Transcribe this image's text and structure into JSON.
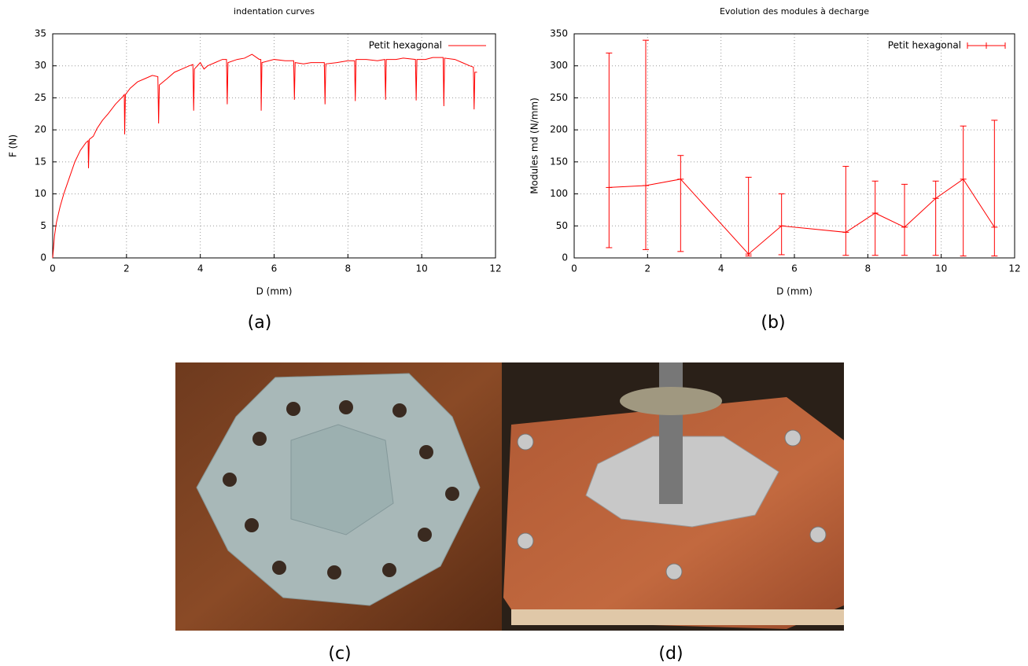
{
  "chart_data": [
    {
      "type": "line",
      "title": "indentation curves",
      "caption": "(a)",
      "xlabel": "D (mm)",
      "ylabel": "F (N)",
      "xlim": [
        0,
        12
      ],
      "ylim": [
        0,
        35
      ],
      "xticks": [
        0,
        2,
        4,
        6,
        8,
        10,
        12
      ],
      "yticks": [
        0,
        5,
        10,
        15,
        20,
        25,
        30,
        35
      ],
      "grid": true,
      "legend": "upper right",
      "x": [
        0,
        0.05,
        0.1,
        0.2,
        0.3,
        0.45,
        0.6,
        0.75,
        0.9,
        0.96,
        0.97,
        0.99,
        1.1,
        1.2,
        1.35,
        1.5,
        1.7,
        1.9,
        1.94,
        1.95,
        1.97,
        2.1,
        2.3,
        2.5,
        2.7,
        2.85,
        2.87,
        2.89,
        3.1,
        3.3,
        3.5,
        3.7,
        3.8,
        3.82,
        3.84,
        4.0,
        4.1,
        4.2,
        4.4,
        4.6,
        4.71,
        4.73,
        4.75,
        5.0,
        5.2,
        5.4,
        5.6,
        5.64,
        5.65,
        5.67,
        6.0,
        6.3,
        6.53,
        6.55,
        6.57,
        6.8,
        7.0,
        7.36,
        7.38,
        7.4,
        7.7,
        8.0,
        8.18,
        8.2,
        8.22,
        8.5,
        8.8,
        9.0,
        9.02,
        9.04,
        9.3,
        9.5,
        9.83,
        9.85,
        9.87,
        10.1,
        10.3,
        10.58,
        10.6,
        10.62,
        10.9,
        11.1,
        11.3,
        11.4,
        11.42,
        11.44,
        11.5
      ],
      "series": [
        {
          "name": "Petit hexagonal",
          "color": "#ff0000",
          "values": [
            0,
            3.5,
            5.5,
            8,
            10,
            12.5,
            15,
            16.8,
            18,
            18.3,
            14,
            18.5,
            19,
            20.2,
            21.5,
            22.5,
            24,
            25.2,
            25.5,
            19.3,
            25.5,
            26.5,
            27.5,
            28,
            28.5,
            28.3,
            21,
            27,
            28,
            29,
            29.5,
            30,
            30.2,
            23,
            29.5,
            30.5,
            29.5,
            30,
            30.5,
            31,
            31,
            24,
            30.5,
            31,
            31.2,
            31.8,
            31,
            31,
            23,
            30.5,
            31,
            30.8,
            30.8,
            24.7,
            30.5,
            30.3,
            30.5,
            30.5,
            24,
            30.3,
            30.5,
            30.8,
            30.8,
            24.5,
            31,
            31,
            30.8,
            31,
            24.7,
            31,
            31,
            31.2,
            31,
            24.6,
            31,
            31,
            31.3,
            31.3,
            23.7,
            31.2,
            31,
            30.5,
            30,
            29.8,
            23.2,
            29,
            29
          ]
        }
      ]
    },
    {
      "type": "errorbar",
      "title": "Evolution des modules à decharge",
      "caption": "(b)",
      "xlabel": "D (mm)",
      "ylabel": "Modules md (N/mm)",
      "xlim": [
        0,
        12
      ],
      "ylim": [
        0,
        350
      ],
      "xticks": [
        0,
        2,
        4,
        6,
        8,
        10,
        12
      ],
      "yticks": [
        0,
        50,
        100,
        150,
        200,
        250,
        300,
        350
      ],
      "grid": true,
      "legend": "upper right",
      "x": [
        0.95,
        1.95,
        2.9,
        4.75,
        5.65,
        7.4,
        8.2,
        9.0,
        9.85,
        10.6,
        11.45
      ],
      "series": [
        {
          "name": "Petit hexagonal",
          "color": "#ff0000",
          "values": [
            110,
            113,
            123,
            6,
            50,
            40,
            70,
            48,
            93,
            123,
            48
          ],
          "low": [
            16,
            13,
            10,
            3,
            5,
            4,
            4,
            4,
            4,
            3,
            3
          ],
          "high": [
            320,
            340,
            160,
            126,
            100,
            143,
            120,
            115,
            120,
            206,
            215
          ]
        }
      ]
    }
  ],
  "photos": [
    {
      "caption": "(c)"
    },
    {
      "caption": "(d)"
    }
  ]
}
